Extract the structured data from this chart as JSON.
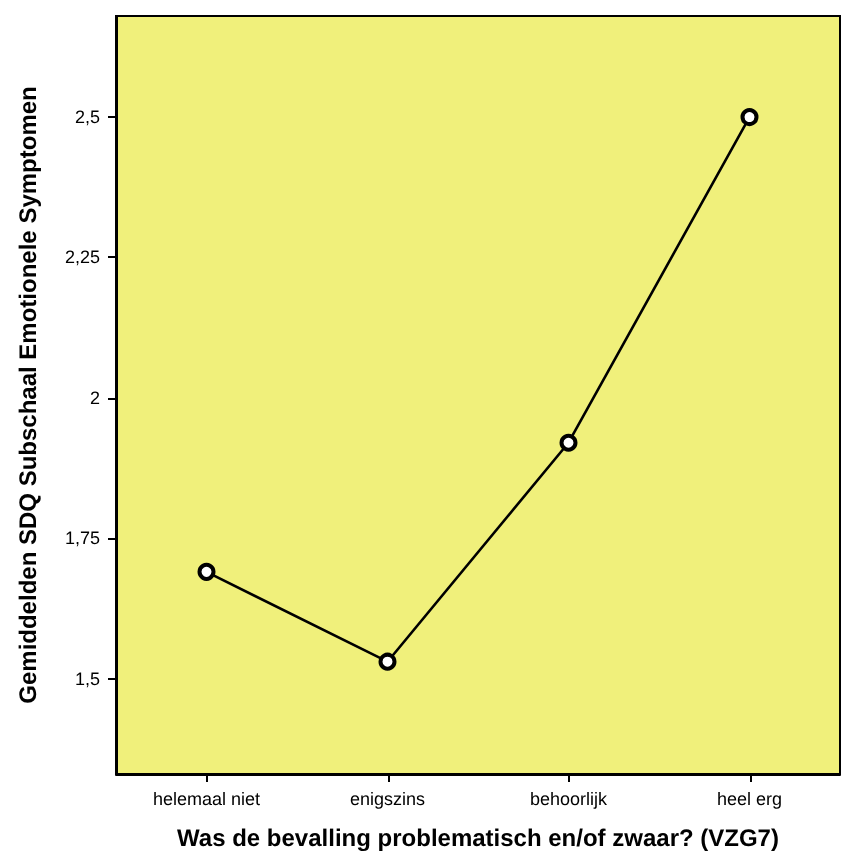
{
  "chart_data": {
    "type": "line",
    "xlabel": "Was de bevalling problematisch en/of zwaar? (VZG7)",
    "ylabel": "Gemiddelden SDQ Subschaal Emotionele Symptomen",
    "categories": [
      "helemaal niet",
      "enigszins",
      "behoorlijk",
      "heel erg"
    ],
    "series": [
      {
        "color": "#000000",
        "values": [
          1.69,
          1.53,
          1.92,
          2.5
        ]
      }
    ],
    "ylim": [
      1.33,
      2.68
    ],
    "yticks": [
      {
        "value": 1.5,
        "label": "1,5"
      },
      {
        "value": 1.75,
        "label": "1,75"
      },
      2,
      {
        "value": 2.25,
        "label": "2,25"
      },
      {
        "value": 2.5,
        "label": "2,5"
      }
    ],
    "marker": "circle",
    "grid": false
  }
}
